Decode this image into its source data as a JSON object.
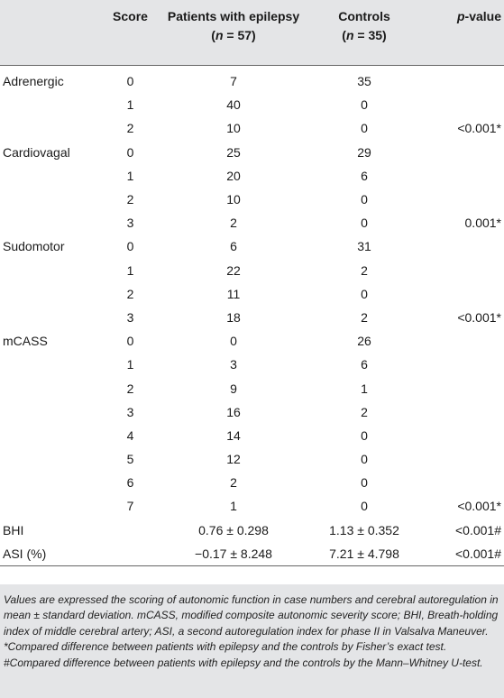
{
  "header": {
    "score": "Score",
    "patients_line1": "Patients with epilepsy",
    "patients_n": "(n = 57)",
    "controls_line1": "Controls",
    "controls_n": "(n = 35)",
    "pvalue_p": "p",
    "pvalue_rest": "-value"
  },
  "rows": [
    {
      "variable": "Adrenergic",
      "score": "0",
      "patients": "7",
      "controls": "35",
      "pvalue": ""
    },
    {
      "variable": "",
      "score": "1",
      "patients": "40",
      "controls": "0",
      "pvalue": ""
    },
    {
      "variable": "",
      "score": "2",
      "patients": "10",
      "controls": "0",
      "pvalue": "<0.001*"
    },
    {
      "variable": "Cardiovagal",
      "score": "0",
      "patients": "25",
      "controls": "29",
      "pvalue": ""
    },
    {
      "variable": "",
      "score": "1",
      "patients": "20",
      "controls": "6",
      "pvalue": ""
    },
    {
      "variable": "",
      "score": "2",
      "patients": "10",
      "controls": "0",
      "pvalue": ""
    },
    {
      "variable": "",
      "score": "3",
      "patients": "2",
      "controls": "0",
      "pvalue": "0.001*"
    },
    {
      "variable": "Sudomotor",
      "score": "0",
      "patients": "6",
      "controls": "31",
      "pvalue": ""
    },
    {
      "variable": "",
      "score": "1",
      "patients": "22",
      "controls": "2",
      "pvalue": ""
    },
    {
      "variable": "",
      "score": "2",
      "patients": "11",
      "controls": "0",
      "pvalue": ""
    },
    {
      "variable": "",
      "score": "3",
      "patients": "18",
      "controls": "2",
      "pvalue": "<0.001*"
    },
    {
      "variable": "mCASS",
      "score": "0",
      "patients": "0",
      "controls": "26",
      "pvalue": ""
    },
    {
      "variable": "",
      "score": "1",
      "patients": "3",
      "controls": "6",
      "pvalue": ""
    },
    {
      "variable": "",
      "score": "2",
      "patients": "9",
      "controls": "1",
      "pvalue": ""
    },
    {
      "variable": "",
      "score": "3",
      "patients": "16",
      "controls": "2",
      "pvalue": ""
    },
    {
      "variable": "",
      "score": "4",
      "patients": "14",
      "controls": "0",
      "pvalue": ""
    },
    {
      "variable": "",
      "score": "5",
      "patients": "12",
      "controls": "0",
      "pvalue": ""
    },
    {
      "variable": "",
      "score": "6",
      "patients": "2",
      "controls": "0",
      "pvalue": ""
    },
    {
      "variable": "",
      "score": "7",
      "patients": "1",
      "controls": "0",
      "pvalue": "<0.001*"
    },
    {
      "variable": "BHI",
      "score": "",
      "patients": "0.76 ± 0.298",
      "controls": "1.13 ± 0.352",
      "pvalue": "<0.001#"
    },
    {
      "variable": "ASI (%)",
      "score": "",
      "patients": "−0.17 ± 8.248",
      "controls": "7.21 ± 4.798",
      "pvalue": "<0.001#"
    }
  ],
  "footnote": "Values are expressed the scoring of autonomic function in case numbers and cerebral autoregulation in mean ± standard deviation. mCASS, modified composite autonomic severity score; BHI, Breath-holding index of middle cerebral artery; ASI, a second autoregulation index for phase II in Valsalva Maneuver. *Compared difference between patients with epilepsy and the controls by Fisher’s exact test. #Compared difference between patients with epilepsy and the controls by the Mann–Whitney U-test."
}
